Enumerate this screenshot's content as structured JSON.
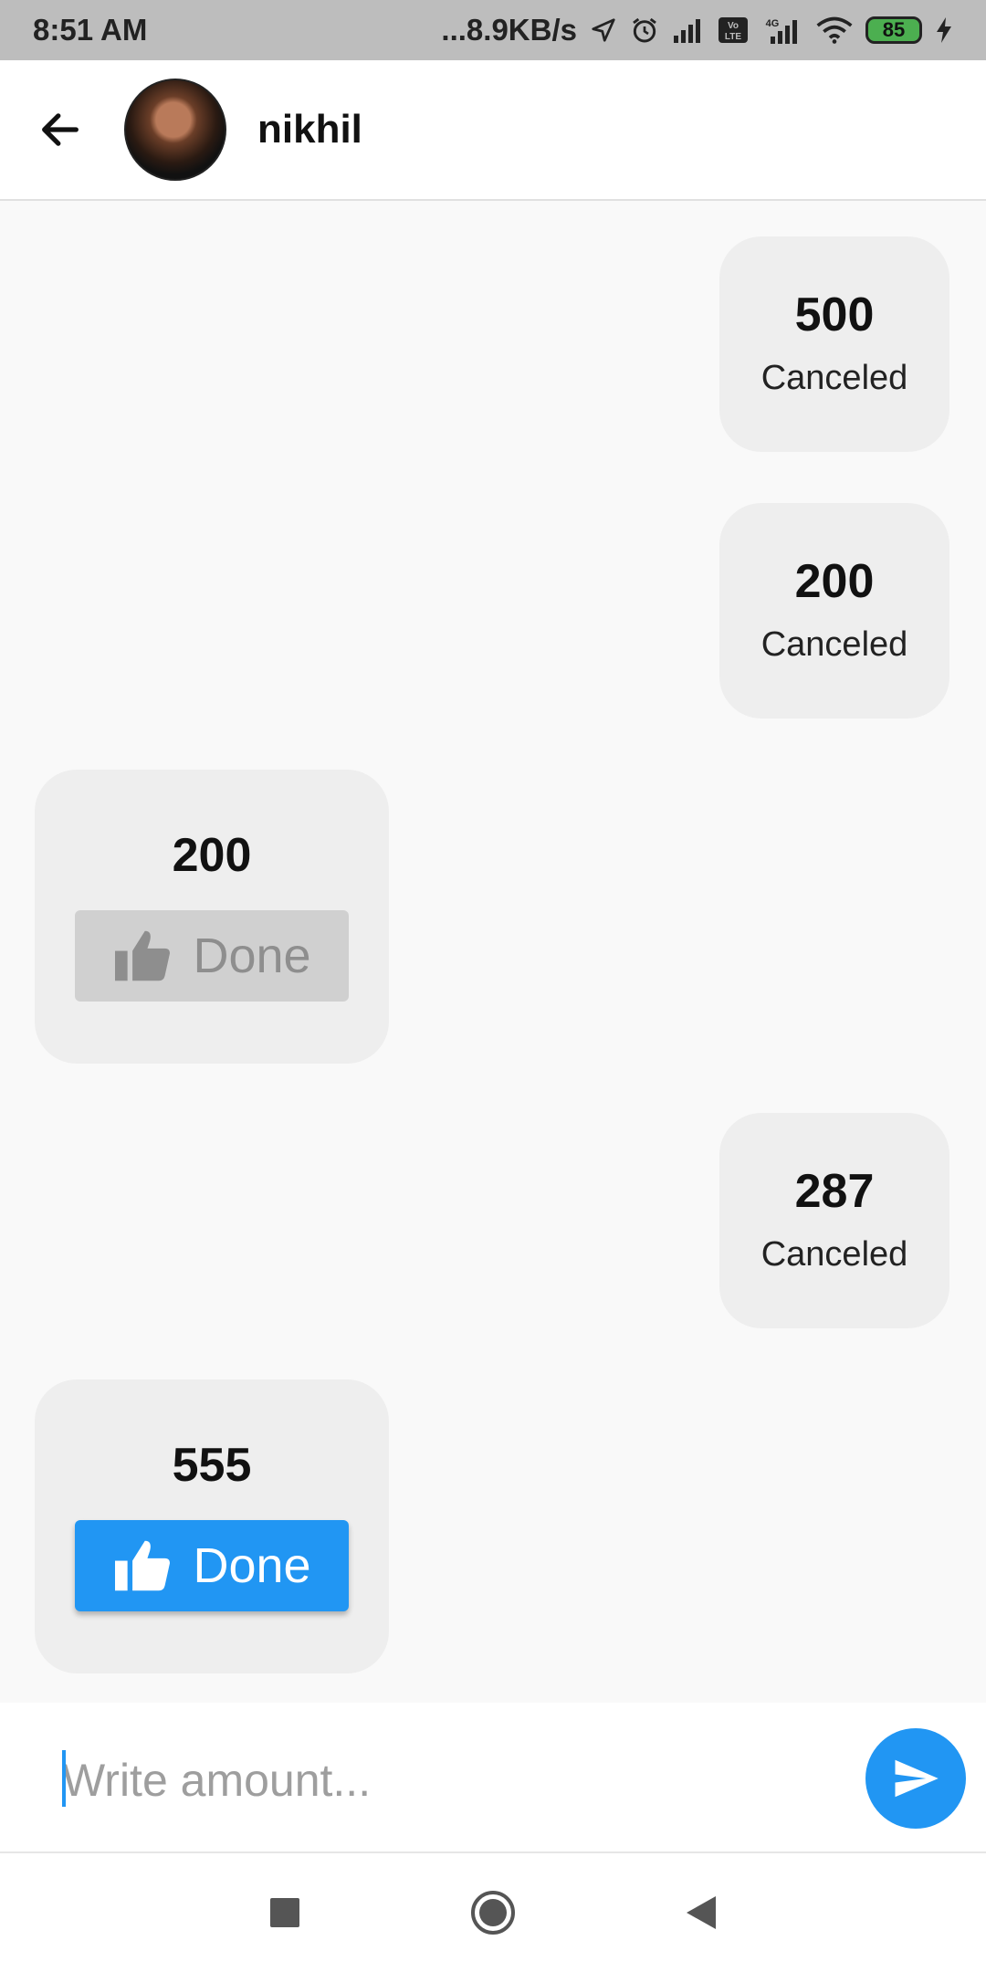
{
  "status_bar": {
    "time": "8:51 AM",
    "net_speed": "...8.9KB/s",
    "battery": "85",
    "icons": [
      "location-arrow-icon",
      "alarm-icon",
      "signal-icon",
      "volte-icon",
      "signal-4g-icon",
      "wifi-icon",
      "battery-icon",
      "charging-icon"
    ]
  },
  "header": {
    "back_icon": "arrow-left-icon",
    "contact_name": "nikhil"
  },
  "messages": [
    {
      "side": "right",
      "amount": "500",
      "status": "Canceled"
    },
    {
      "side": "right",
      "amount": "200",
      "status": "Canceled"
    },
    {
      "side": "left",
      "amount": "200",
      "button": "Done",
      "button_state": "disabled"
    },
    {
      "side": "right",
      "amount": "287",
      "status": "Canceled"
    },
    {
      "side": "left",
      "amount": "555",
      "button": "Done",
      "button_state": "active"
    }
  ],
  "composer": {
    "placeholder": "Write amount...",
    "send_icon": "send-icon"
  },
  "colors": {
    "accent": "#2196f3",
    "bubble": "#eeeeee",
    "background": "#f9f9f9",
    "disabled_button": "#d0d0d0"
  },
  "nav_bar": [
    "recent-apps-icon",
    "home-icon",
    "back-icon"
  ]
}
